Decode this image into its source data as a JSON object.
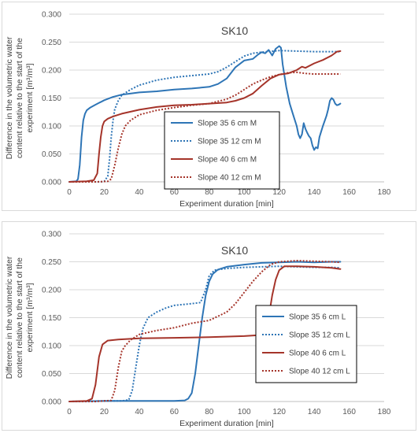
{
  "chart_data": [
    {
      "type": "line",
      "title": "SK10",
      "xlabel": "Experiment duration [min]",
      "ylabel_lines": [
        "Difference in the volumetric water",
        "content relative to the start of the",
        "experiment [m³/m³]"
      ],
      "xlim": [
        0,
        180
      ],
      "ylim": [
        0,
        0.3
      ],
      "x_ticks": [
        "0",
        "20",
        "40",
        "60",
        "80",
        "100",
        "120",
        "140",
        "160",
        "180"
      ],
      "y_ticks": [
        "0.000",
        "0.050",
        "0.100",
        "0.150",
        "0.200",
        "0.250",
        "0.300"
      ],
      "grid": true,
      "legend_position": "center-right, boxed",
      "series": [
        {
          "name": "Slope 35 6 cm M",
          "color": "#2e75b6",
          "dash": "solid",
          "points": [
            [
              0,
              0
            ],
            [
              4,
              0.001
            ],
            [
              5,
              0.005
            ],
            [
              6,
              0.03
            ],
            [
              7,
              0.08
            ],
            [
              8,
              0.11
            ],
            [
              9,
              0.122
            ],
            [
              10,
              0.128
            ],
            [
              12,
              0.133
            ],
            [
              15,
              0.138
            ],
            [
              20,
              0.146
            ],
            [
              25,
              0.152
            ],
            [
              30,
              0.156
            ],
            [
              40,
              0.16
            ],
            [
              50,
              0.162
            ],
            [
              60,
              0.165
            ],
            [
              70,
              0.167
            ],
            [
              80,
              0.17
            ],
            [
              85,
              0.175
            ],
            [
              90,
              0.185
            ],
            [
              95,
              0.205
            ],
            [
              100,
              0.217
            ],
            [
              105,
              0.22
            ],
            [
              108,
              0.228
            ],
            [
              110,
              0.232
            ],
            [
              112,
              0.23
            ],
            [
              114,
              0.236
            ],
            [
              116,
              0.226
            ],
            [
              118,
              0.238
            ],
            [
              120,
              0.243
            ],
            [
              121,
              0.24
            ],
            [
              122,
              0.21
            ],
            [
              124,
              0.17
            ],
            [
              126,
              0.14
            ],
            [
              128,
              0.12
            ],
            [
              130,
              0.1
            ],
            [
              131,
              0.085
            ],
            [
              132,
              0.078
            ],
            [
              133,
              0.085
            ],
            [
              134,
              0.105
            ],
            [
              135,
              0.095
            ],
            [
              136,
              0.088
            ],
            [
              137,
              0.082
            ],
            [
              138,
              0.078
            ],
            [
              139,
              0.065
            ],
            [
              140,
              0.057
            ],
            [
              141,
              0.062
            ],
            [
              142,
              0.06
            ],
            [
              143,
              0.08
            ],
            [
              144,
              0.09
            ],
            [
              145,
              0.1
            ],
            [
              147,
              0.118
            ],
            [
              148,
              0.13
            ],
            [
              149,
              0.145
            ],
            [
              150,
              0.15
            ],
            [
              151,
              0.147
            ],
            [
              152,
              0.14
            ],
            [
              153,
              0.137
            ],
            [
              154,
              0.138
            ],
            [
              155,
              0.14
            ]
          ]
        },
        {
          "name": "Slope 35 12 cm M",
          "color": "#2e75b6",
          "dash": "dotted",
          "points": [
            [
              0,
              0
            ],
            [
              10,
              0
            ],
            [
              18,
              0
            ],
            [
              20,
              0.001
            ],
            [
              22,
              0.01
            ],
            [
              23,
              0.04
            ],
            [
              24,
              0.08
            ],
            [
              25,
              0.11
            ],
            [
              26,
              0.13
            ],
            [
              28,
              0.145
            ],
            [
              30,
              0.155
            ],
            [
              35,
              0.165
            ],
            [
              40,
              0.173
            ],
            [
              50,
              0.182
            ],
            [
              60,
              0.187
            ],
            [
              70,
              0.19
            ],
            [
              80,
              0.193
            ],
            [
              85,
              0.197
            ],
            [
              90,
              0.205
            ],
            [
              95,
              0.215
            ],
            [
              100,
              0.225
            ],
            [
              105,
              0.23
            ],
            [
              110,
              0.232
            ],
            [
              120,
              0.235
            ],
            [
              130,
              0.234
            ],
            [
              140,
              0.233
            ],
            [
              150,
              0.233
            ],
            [
              155,
              0.233
            ]
          ]
        },
        {
          "name": "Slope 40 6 cm M",
          "color": "#a5342a",
          "dash": "solid",
          "points": [
            [
              0,
              0
            ],
            [
              10,
              0.001
            ],
            [
              14,
              0.003
            ],
            [
              16,
              0.015
            ],
            [
              17,
              0.05
            ],
            [
              18,
              0.08
            ],
            [
              19,
              0.1
            ],
            [
              20,
              0.108
            ],
            [
              22,
              0.113
            ],
            [
              25,
              0.117
            ],
            [
              30,
              0.122
            ],
            [
              40,
              0.129
            ],
            [
              50,
              0.134
            ],
            [
              60,
              0.137
            ],
            [
              70,
              0.138
            ],
            [
              80,
              0.14
            ],
            [
              90,
              0.142
            ],
            [
              95,
              0.145
            ],
            [
              100,
              0.15
            ],
            [
              105,
              0.158
            ],
            [
              110,
              0.172
            ],
            [
              115,
              0.185
            ],
            [
              120,
              0.192
            ],
            [
              125,
              0.194
            ],
            [
              130,
              0.2
            ],
            [
              133,
              0.206
            ],
            [
              135,
              0.204
            ],
            [
              140,
              0.212
            ],
            [
              145,
              0.218
            ],
            [
              150,
              0.226
            ],
            [
              153,
              0.233
            ],
            [
              155,
              0.234
            ]
          ]
        },
        {
          "name": "Slope 40 12 cm M",
          "color": "#a5342a",
          "dash": "dotted",
          "points": [
            [
              0,
              0
            ],
            [
              15,
              0
            ],
            [
              22,
              0.001
            ],
            [
              24,
              0.005
            ],
            [
              26,
              0.03
            ],
            [
              28,
              0.06
            ],
            [
              30,
              0.085
            ],
            [
              32,
              0.1
            ],
            [
              35,
              0.11
            ],
            [
              40,
              0.12
            ],
            [
              50,
              0.128
            ],
            [
              60,
              0.133
            ],
            [
              70,
              0.137
            ],
            [
              80,
              0.14
            ],
            [
              90,
              0.148
            ],
            [
              95,
              0.155
            ],
            [
              100,
              0.165
            ],
            [
              105,
              0.175
            ],
            [
              110,
              0.182
            ],
            [
              115,
              0.188
            ],
            [
              120,
              0.192
            ],
            [
              125,
              0.195
            ],
            [
              130,
              0.196
            ],
            [
              135,
              0.194
            ],
            [
              140,
              0.193
            ],
            [
              145,
              0.193
            ],
            [
              150,
              0.193
            ],
            [
              155,
              0.193
            ]
          ]
        }
      ]
    },
    {
      "type": "line",
      "title": "SK10",
      "xlabel": "Experiment duration [min]",
      "ylabel_lines": [
        "Difference in the volumetric water",
        "content relative to the start of the",
        "experiment [m³/m³]"
      ],
      "xlim": [
        0,
        180
      ],
      "ylim": [
        0,
        0.3
      ],
      "x_ticks": [
        "0",
        "20",
        "40",
        "60",
        "80",
        "100",
        "120",
        "140",
        "160",
        "180"
      ],
      "y_ticks": [
        "0.000",
        "0.050",
        "0.100",
        "0.150",
        "0.200",
        "0.250",
        "0.300"
      ],
      "grid": true,
      "legend_position": "center-right, boxed",
      "series": [
        {
          "name": "Slope 35 6 cm L",
          "color": "#2e75b6",
          "dash": "solid",
          "points": [
            [
              0,
              0
            ],
            [
              20,
              0.001
            ],
            [
              40,
              0.001
            ],
            [
              60,
              0.001
            ],
            [
              66,
              0.002
            ],
            [
              68,
              0.005
            ],
            [
              70,
              0.015
            ],
            [
              72,
              0.05
            ],
            [
              74,
              0.1
            ],
            [
              76,
              0.15
            ],
            [
              78,
              0.19
            ],
            [
              80,
              0.215
            ],
            [
              82,
              0.228
            ],
            [
              85,
              0.236
            ],
            [
              90,
              0.241
            ],
            [
              95,
              0.243
            ],
            [
              100,
              0.245
            ],
            [
              110,
              0.248
            ],
            [
              120,
              0.249
            ],
            [
              130,
              0.25
            ],
            [
              140,
              0.249
            ],
            [
              150,
              0.25
            ],
            [
              155,
              0.25
            ]
          ]
        },
        {
          "name": "Slope 35 12 cm L",
          "color": "#2e75b6",
          "dash": "dotted",
          "points": [
            [
              0,
              0
            ],
            [
              20,
              0.001
            ],
            [
              30,
              0.001
            ],
            [
              34,
              0.003
            ],
            [
              36,
              0.02
            ],
            [
              38,
              0.06
            ],
            [
              40,
              0.1
            ],
            [
              42,
              0.13
            ],
            [
              45,
              0.15
            ],
            [
              50,
              0.16
            ],
            [
              55,
              0.167
            ],
            [
              60,
              0.172
            ],
            [
              70,
              0.175
            ],
            [
              75,
              0.177
            ],
            [
              78,
              0.2
            ],
            [
              80,
              0.225
            ],
            [
              83,
              0.235
            ],
            [
              90,
              0.238
            ],
            [
              100,
              0.24
            ],
            [
              110,
              0.241
            ],
            [
              120,
              0.242
            ],
            [
              130,
              0.241
            ],
            [
              140,
              0.24
            ],
            [
              150,
              0.24
            ],
            [
              155,
              0.239
            ]
          ]
        },
        {
          "name": "Slope 40 6 cm L",
          "color": "#a5342a",
          "dash": "solid",
          "points": [
            [
              0,
              0
            ],
            [
              10,
              0.001
            ],
            [
              13,
              0.005
            ],
            [
              15,
              0.03
            ],
            [
              17,
              0.08
            ],
            [
              19,
              0.102
            ],
            [
              22,
              0.109
            ],
            [
              28,
              0.111
            ],
            [
              40,
              0.113
            ],
            [
              60,
              0.114
            ],
            [
              80,
              0.115
            ],
            [
              100,
              0.117
            ],
            [
              110,
              0.119
            ],
            [
              112,
              0.125
            ],
            [
              114,
              0.15
            ],
            [
              116,
              0.19
            ],
            [
              118,
              0.218
            ],
            [
              120,
              0.235
            ],
            [
              123,
              0.242
            ],
            [
              130,
              0.242
            ],
            [
              140,
              0.241
            ],
            [
              150,
              0.239
            ],
            [
              155,
              0.237
            ]
          ]
        },
        {
          "name": "Slope 40 12 cm L",
          "color": "#a5342a",
          "dash": "dotted",
          "points": [
            [
              0,
              0
            ],
            [
              15,
              0
            ],
            [
              24,
              0.002
            ],
            [
              26,
              0.02
            ],
            [
              28,
              0.06
            ],
            [
              30,
              0.09
            ],
            [
              32,
              0.1
            ],
            [
              35,
              0.11
            ],
            [
              40,
              0.12
            ],
            [
              50,
              0.127
            ],
            [
              60,
              0.132
            ],
            [
              70,
              0.14
            ],
            [
              80,
              0.145
            ],
            [
              90,
              0.16
            ],
            [
              95,
              0.175
            ],
            [
              100,
              0.195
            ],
            [
              105,
              0.215
            ],
            [
              110,
              0.232
            ],
            [
              115,
              0.245
            ],
            [
              120,
              0.25
            ],
            [
              130,
              0.252
            ],
            [
              140,
              0.251
            ],
            [
              150,
              0.25
            ],
            [
              155,
              0.249
            ]
          ]
        }
      ]
    }
  ]
}
